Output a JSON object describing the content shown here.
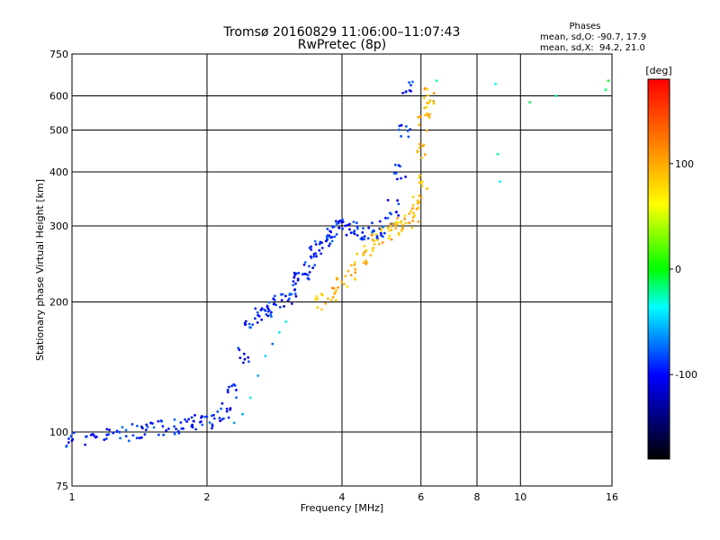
{
  "chart_data": {
    "type": "scatter",
    "title": "Tromsø 20160829 11:06:00–11:07:43",
    "subtitle": "RwPretec (8p)",
    "xlabel": "Frequency [MHz]",
    "ylabel": "Stationary phase Virtual Height [km]",
    "x_scale": "log",
    "y_scale": "log",
    "xlim": [
      1,
      16
    ],
    "ylim": [
      75,
      750
    ],
    "x_ticks": [
      1,
      2,
      4,
      6,
      8,
      10,
      16
    ],
    "x_tick_labels": [
      "1",
      "2",
      "4",
      "6",
      "8",
      "10",
      "16"
    ],
    "y_ticks": [
      75,
      100,
      200,
      300,
      400,
      500,
      600,
      750
    ],
    "y_tick_labels": [
      "75",
      "100",
      "200",
      "300",
      "400",
      "500",
      "600",
      "750"
    ],
    "grid": true,
    "legend": {
      "header": "Phases",
      "lines": [
        "mean, sd,O: -90.7, 17.9",
        "mean, sd,X:  94.2, 21.0"
      ],
      "placement": "top-right"
    },
    "colorbar": {
      "label": "[deg]",
      "range": [
        -180,
        180
      ],
      "ticks": [
        100,
        0,
        -100
      ],
      "tick_labels": [
        "100",
        "0",
        "-100"
      ],
      "colors": [
        "#ff0000",
        "#ff8000",
        "#ffff00",
        "#00ff00",
        "#00ffff",
        "#0000ff",
        "#000000"
      ]
    },
    "series": [
      {
        "name": "O-mode trace (blue)",
        "phase_deg": -90.7,
        "x": [
          1.0,
          1.1,
          1.2,
          1.3,
          1.4,
          1.5,
          1.6,
          1.7,
          1.8,
          1.9,
          2.0,
          2.1,
          2.2,
          2.3,
          2.4,
          2.5,
          2.6,
          2.7,
          2.8,
          2.9,
          3.0,
          3.1,
          3.2,
          3.3,
          3.4,
          3.5,
          3.6,
          3.7,
          3.8,
          3.9,
          4.0,
          4.2,
          4.4,
          4.6,
          4.8,
          5.0,
          5.2,
          5.4,
          5.5,
          5.6
        ],
        "y": [
          96,
          97,
          98,
          99,
          100,
          101,
          102,
          103,
          104,
          105,
          106,
          108,
          112,
          125,
          150,
          175,
          185,
          190,
          195,
          198,
          205,
          215,
          225,
          235,
          250,
          260,
          270,
          280,
          290,
          298,
          300,
          295,
          290,
          290,
          292,
          300,
          330,
          400,
          500,
          630
        ]
      },
      {
        "name": "X-mode trace (yellow/orange)",
        "phase_deg": 94.2,
        "x": [
          3.6,
          3.8,
          4.0,
          4.2,
          4.4,
          4.6,
          4.8,
          5.0,
          5.2,
          5.4,
          5.6,
          5.8,
          5.9,
          6.0,
          6.05,
          6.1,
          6.2,
          6.3
        ],
        "y": [
          200,
          210,
          220,
          235,
          250,
          265,
          275,
          285,
          295,
          300,
          305,
          320,
          340,
          380,
          450,
          520,
          560,
          600
        ]
      },
      {
        "name": "Lower-frequency echo (cyan)",
        "phase_deg": -60,
        "x": [
          2.3,
          2.4,
          2.5,
          2.6,
          2.7,
          2.8,
          2.9,
          3.0
        ],
        "y": [
          105,
          110,
          120,
          135,
          150,
          160,
          170,
          180
        ]
      },
      {
        "name": "Sparse high-frequency echoes",
        "phase_deg": -20,
        "x": [
          6.5,
          8.8,
          8.9,
          9.0,
          10.5,
          12.0,
          15.5,
          15.7
        ],
        "y": [
          650,
          640,
          440,
          380,
          580,
          600,
          620,
          650
        ]
      }
    ]
  }
}
